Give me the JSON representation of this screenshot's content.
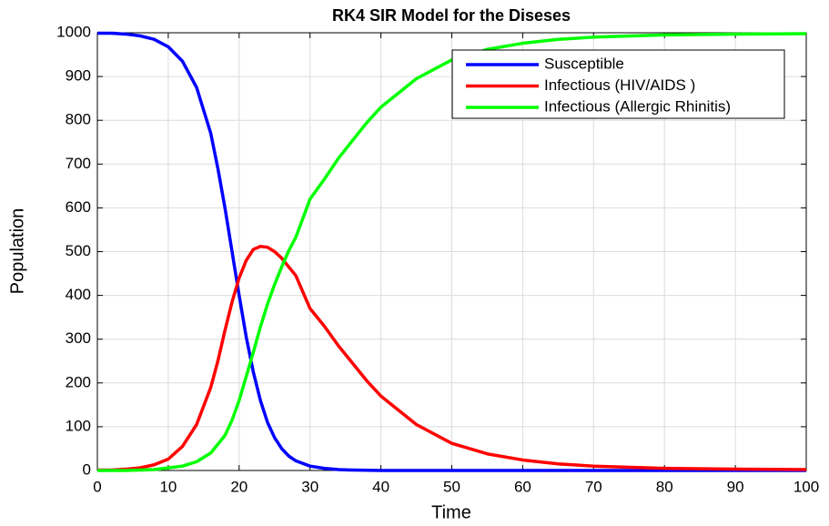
{
  "chart_data": {
    "type": "line",
    "title": "RK4 SIR Model for the Diseses",
    "xlabel": "Time",
    "ylabel": "Population",
    "x": [
      0,
      2,
      4,
      6,
      8,
      10,
      12,
      14,
      16,
      17,
      18,
      19,
      20,
      21,
      22,
      23,
      24,
      25,
      26,
      27,
      28,
      30,
      32,
      34,
      36,
      38,
      40,
      45,
      50,
      55,
      60,
      65,
      70,
      80,
      90,
      100
    ],
    "series": [
      {
        "name": "Susceptible",
        "color": "#0000ff",
        "values": [
          999,
          999,
          997,
          993,
          985,
          968,
          935,
          875,
          770,
          690,
          600,
          500,
          400,
          305,
          225,
          160,
          110,
          75,
          50,
          33,
          22,
          10,
          5,
          2,
          1,
          0.5,
          0,
          0,
          0,
          0,
          0,
          0,
          0,
          0,
          0,
          0
        ]
      },
      {
        "name": "Infectious (HIV/AIDS )",
        "color": "#ff0000",
        "values": [
          1,
          1,
          3,
          6,
          13,
          26,
          55,
          105,
          190,
          250,
          320,
          385,
          440,
          480,
          505,
          512,
          510,
          500,
          485,
          465,
          445,
          370,
          330,
          285,
          245,
          205,
          170,
          105,
          62,
          38,
          24,
          15,
          10,
          5,
          3,
          2
        ]
      },
      {
        "name": "Infectious (Allergic Rhinitis)",
        "color": "#00ff00",
        "values": [
          0,
          0,
          0,
          1,
          2,
          6,
          10,
          20,
          40,
          60,
          80,
          115,
          160,
          215,
          270,
          328,
          380,
          425,
          465,
          502,
          533,
          620,
          665,
          713,
          754,
          794.5,
          830,
          895,
          938,
          962,
          976,
          985,
          990,
          995,
          997,
          998
        ]
      }
    ],
    "xlim": [
      0,
      100
    ],
    "xticks": [
      0,
      10,
      20,
      30,
      40,
      50,
      60,
      70,
      80,
      90,
      100
    ],
    "ylim": [
      0,
      1000
    ],
    "yticks": [
      0,
      100,
      200,
      300,
      400,
      500,
      600,
      700,
      800,
      900,
      1000
    ],
    "grid": true,
    "legend": "upper right"
  }
}
